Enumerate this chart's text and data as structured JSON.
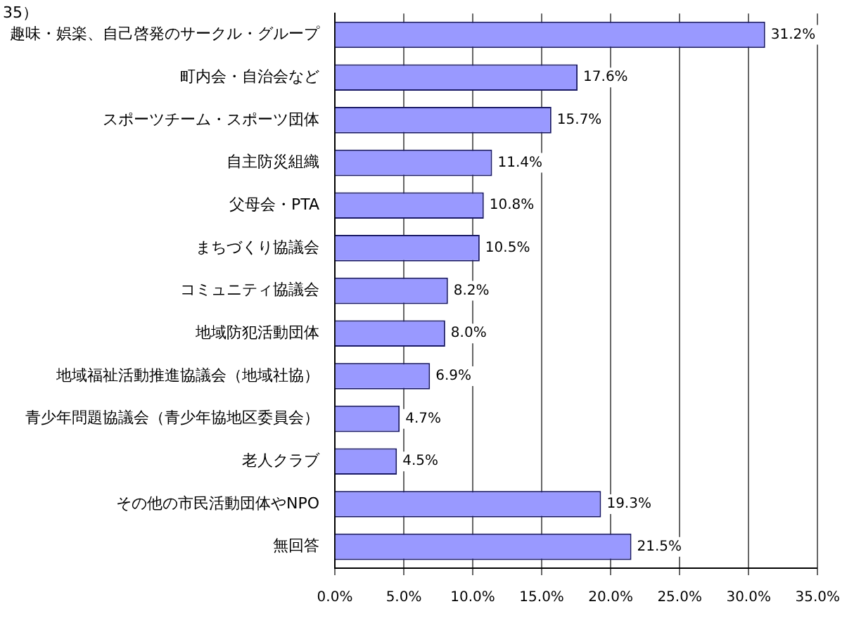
{
  "chart_data": {
    "type": "bar",
    "orientation": "horizontal",
    "categories": [
      "趣味・娯楽、自己啓発のサークル・グループ",
      "町内会・自治会など",
      "スポーツチーム・スポーツ団体",
      "自主防災組織",
      "父母会・PTA",
      "まちづくり協議会",
      "コミュニティ協議会",
      "地域防犯活動団体",
      "地域福祉活動推進協議会（地域社協）",
      "青少年問題協議会（青少年協地区委員会）",
      "老人クラブ",
      "その他の市民活動団体やNPO",
      "無回答"
    ],
    "values": [
      31.2,
      17.6,
      15.7,
      11.4,
      10.8,
      10.5,
      8.2,
      8.0,
      6.9,
      4.7,
      4.5,
      19.3,
      21.5
    ],
    "value_labels": [
      "31.2%",
      "17.6%",
      "15.7%",
      "11.4%",
      "10.8%",
      "10.5%",
      "8.2%",
      "8.0%",
      "6.9%",
      "4.7%",
      "4.5%",
      "19.3%",
      "21.5%"
    ],
    "color": "#9999ff",
    "xlim": [
      0,
      35
    ],
    "xticks": [
      {
        "value": 0,
        "label": "0.0%"
      },
      {
        "value": 5,
        "label": "5.0%"
      },
      {
        "value": 10,
        "label": "10.0%"
      },
      {
        "value": 15,
        "label": "15.0%"
      },
      {
        "value": 20,
        "label": "20.0%"
      },
      {
        "value": 25,
        "label": "25.0%"
      },
      {
        "value": 30,
        "label": "30.0%"
      },
      {
        "value": 35,
        "label": "35.0%"
      }
    ],
    "grid": "x",
    "annotations": [
      "35）"
    ]
  }
}
